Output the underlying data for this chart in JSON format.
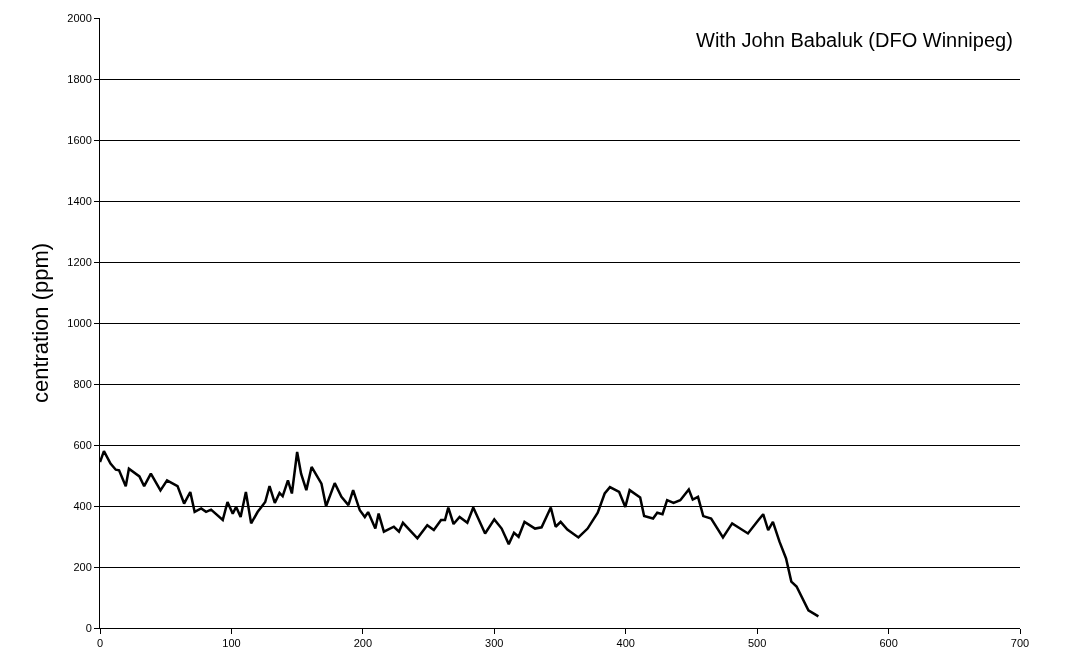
{
  "chart_data": {
    "type": "line",
    "ylabel": "centration (ppm)",
    "annotations": [
      "With John Babaluk (DFO Winnipeg)"
    ],
    "x": [
      0,
      3,
      8,
      12,
      14.5,
      19.6,
      22,
      30,
      33.6,
      38.7,
      46,
      51,
      59,
      64,
      68.7,
      72,
      77,
      80.7,
      84.5,
      93.4,
      97,
      101,
      103.6,
      107,
      111,
      115,
      120,
      125.7,
      129,
      133,
      136.6,
      139,
      143,
      146,
      150,
      153,
      157,
      161,
      168.5,
      172,
      178.6,
      183.7,
      189,
      192.6,
      197.7,
      201.5,
      204,
      209.5,
      212,
      216,
      223.6,
      227.5,
      230.5,
      241.5,
      249,
      254,
      259.5,
      262.5,
      265,
      269,
      273.6,
      279.5,
      284,
      293,
      300,
      305.6,
      311,
      315,
      318.5,
      323,
      331,
      336,
      343,
      346.7,
      350.5,
      355.6,
      364,
      371,
      378.7,
      384,
      388,
      395,
      399.7,
      403,
      411,
      414,
      420.8,
      424,
      428,
      431.5,
      436.4,
      441.5,
      448,
      451,
      455,
      459,
      465,
      474,
      481,
      493,
      501,
      504.6,
      508.4,
      512,
      517,
      522,
      526,
      530,
      539,
      546.6
    ],
    "series": [
      {
        "color": "#000000",
        "values": [
          544,
          580,
          539,
          519,
          517,
          465,
          522,
          497,
          465,
          506,
          451,
          484,
          465,
          408,
          446,
          381,
          392,
          381,
          388,
          354,
          413,
          375,
          397,
          364,
          446,
          343,
          381,
          413,
          465,
          410,
          443,
          432,
          484,
          441,
          577,
          506,
          452,
          528,
          473,
          399,
          475,
          430,
          403,
          452,
          386,
          364,
          380,
          326,
          375,
          316,
          332,
          316,
          345,
          294,
          337,
          321,
          354,
          354,
          395,
          341,
          364,
          345,
          395,
          310,
          356,
          326,
          275,
          312,
          299,
          348,
          326,
          330,
          395,
          332,
          348,
          323,
          297,
          326,
          378,
          441,
          462,
          446,
          397,
          452,
          428,
          367,
          359,
          378,
          373,
          419,
          410,
          419,
          454,
          421,
          430,
          367,
          359,
          297,
          343,
          310,
          354,
          373,
          321,
          348,
          283,
          228,
          152,
          136,
          58,
          38
        ]
      }
    ],
    "xlim": [
      0,
      700
    ],
    "xticks": [
      0,
      100,
      200,
      300,
      400,
      500,
      600,
      700
    ],
    "ylim": [
      0,
      2000
    ],
    "yticks": [
      0,
      200,
      400,
      600,
      800,
      1000,
      1200,
      1400,
      1600,
      1800,
      2000
    ],
    "grid": "y",
    "marker": "none",
    "line_style": "solid"
  }
}
